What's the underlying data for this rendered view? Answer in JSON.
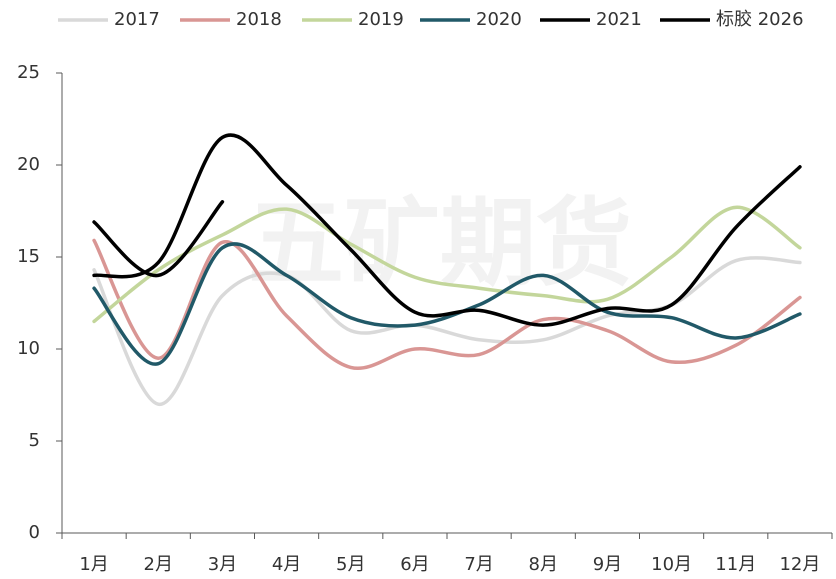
{
  "chart_data": {
    "type": "line",
    "watermark": "五矿期货",
    "categories": [
      "1月",
      "2月",
      "3月",
      "4月",
      "5月",
      "6月",
      "7月",
      "8月",
      "9月",
      "10月",
      "11月",
      "12月"
    ],
    "series": [
      {
        "name": "2017",
        "color": "#d9d9d9",
        "values": [
          14.3,
          7.0,
          12.9,
          14.0,
          11.0,
          11.3,
          10.5,
          10.5,
          11.8,
          12.4,
          14.8,
          14.7
        ]
      },
      {
        "name": "2018",
        "color": "#d99694",
        "values": [
          15.9,
          9.5,
          15.8,
          11.8,
          9.0,
          10.0,
          9.7,
          11.6,
          11.0,
          9.3,
          10.2,
          12.8
        ]
      },
      {
        "name": "2019",
        "color": "#c3d69b",
        "values": [
          11.5,
          14.3,
          16.2,
          17.6,
          15.7,
          13.9,
          13.3,
          12.9,
          12.7,
          15.0,
          17.7,
          15.5
        ]
      },
      {
        "name": "2020",
        "color": "#215968",
        "values": [
          13.3,
          9.2,
          15.5,
          14.0,
          11.7,
          11.3,
          12.4,
          14.0,
          12.0,
          11.7,
          10.6,
          11.9
        ]
      },
      {
        "name": "2021",
        "color": "#000000",
        "values": [
          14.0,
          14.7,
          21.5,
          18.9,
          15.4,
          12.0,
          12.1,
          11.3,
          12.2,
          12.4,
          16.6,
          19.9
        ]
      },
      {
        "name": "标胶 2026",
        "color": "#000000",
        "values": [
          16.9,
          14.0,
          18.0,
          null,
          null,
          null,
          null,
          null,
          null,
          null,
          null,
          null
        ]
      }
    ],
    "ylim": [
      0,
      25
    ],
    "yticks": [
      0,
      5,
      10,
      15,
      20,
      25
    ],
    "grid": false,
    "legend": "top"
  }
}
